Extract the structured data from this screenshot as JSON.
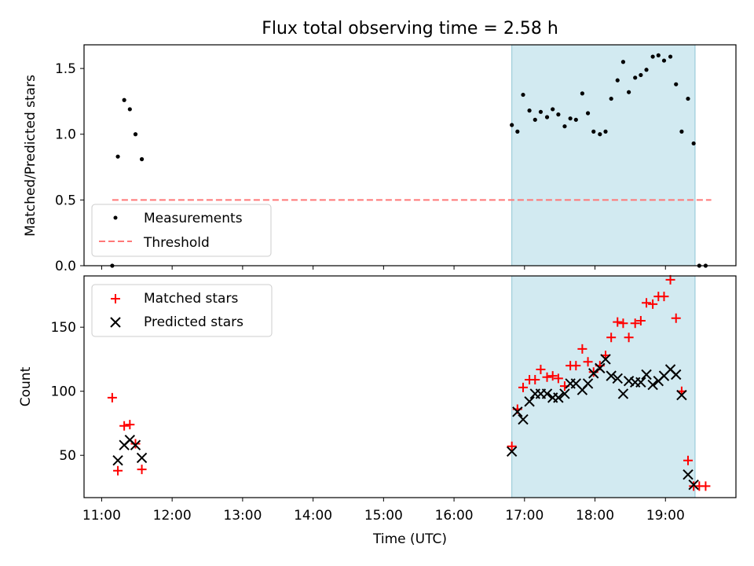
{
  "chart_data": [
    {
      "type": "scatter",
      "title": "Flux total observing time = 2.58 h",
      "xlabel": "",
      "ylabel": "Matched/Predicted stars",
      "xlim": [
        10.75,
        20.0
      ],
      "ylim": [
        0,
        1.68
      ],
      "yticks": [
        0.0,
        0.5,
        1.0,
        1.5
      ],
      "ytick_labels": [
        "0.0",
        "0.5",
        "1.0",
        "1.5"
      ],
      "shaded_span": [
        16.82,
        19.42
      ],
      "series": [
        {
          "name": "Measurements",
          "marker": "dot",
          "color": "#000000",
          "x": [
            11.15,
            11.23,
            11.32,
            11.4,
            11.48,
            11.57,
            16.82,
            16.9,
            16.98,
            17.07,
            17.15,
            17.23,
            17.32,
            17.4,
            17.48,
            17.57,
            17.65,
            17.73,
            17.82,
            17.9,
            17.98,
            18.07,
            18.15,
            18.23,
            18.32,
            18.4,
            18.48,
            18.57,
            18.65,
            18.73,
            18.82,
            18.9,
            18.98,
            19.07,
            19.15,
            19.23,
            19.32,
            19.4,
            19.48,
            19.57
          ],
          "y": [
            0.0,
            0.83,
            1.26,
            1.19,
            1.0,
            0.81,
            1.07,
            1.02,
            1.3,
            1.18,
            1.11,
            1.17,
            1.13,
            1.19,
            1.15,
            1.06,
            1.12,
            1.11,
            1.31,
            1.16,
            1.02,
            1.0,
            1.02,
            1.27,
            1.41,
            1.55,
            1.32,
            1.43,
            1.45,
            1.49,
            1.59,
            1.6,
            1.56,
            1.59,
            1.38,
            1.02,
            1.27,
            0.93,
            0.0,
            0.0
          ]
        },
        {
          "name": "Threshold",
          "marker": "dashed-line",
          "color": "#ff7777",
          "x": [
            11.15,
            19.65
          ],
          "y": [
            0.5,
            0.5
          ]
        }
      ],
      "legend": "lower-left"
    },
    {
      "type": "scatter",
      "title": "",
      "xlabel": "Time (UTC)",
      "ylabel": "Count",
      "xlim": [
        10.75,
        20.0
      ],
      "ylim": [
        17,
        190
      ],
      "yticks": [
        50,
        100,
        150
      ],
      "ytick_labels": [
        "50",
        "100",
        "150"
      ],
      "xticks": [
        11,
        12,
        13,
        14,
        15,
        16,
        17,
        18,
        19
      ],
      "xtick_labels": [
        "11:00",
        "12:00",
        "13:00",
        "14:00",
        "15:00",
        "16:00",
        "17:00",
        "18:00",
        "19:00"
      ],
      "shaded_span": [
        16.82,
        19.42
      ],
      "series": [
        {
          "name": "Matched stars",
          "marker": "plus",
          "color": "#ff0000",
          "x": [
            11.15,
            11.23,
            11.32,
            11.4,
            11.48,
            11.57,
            16.82,
            16.9,
            16.98,
            17.07,
            17.15,
            17.23,
            17.32,
            17.4,
            17.48,
            17.57,
            17.65,
            17.73,
            17.82,
            17.9,
            17.98,
            18.07,
            18.15,
            18.23,
            18.32,
            18.4,
            18.48,
            18.57,
            18.65,
            18.73,
            18.82,
            18.9,
            18.98,
            19.07,
            19.15,
            19.23,
            19.32,
            19.4,
            19.48,
            19.57
          ],
          "y": [
            95,
            38,
            73,
            74,
            59,
            39,
            57,
            86,
            103,
            109,
            109,
            117,
            111,
            112,
            110,
            104,
            120,
            120,
            133,
            123,
            115,
            120,
            128,
            142,
            154,
            153,
            142,
            153,
            155,
            169,
            168,
            174,
            174,
            187,
            157,
            100,
            46,
            26,
            26,
            26
          ]
        },
        {
          "name": "Predicted stars",
          "marker": "x",
          "color": "#000000",
          "x": [
            11.23,
            11.32,
            11.4,
            11.48,
            11.57,
            16.82,
            16.9,
            16.98,
            17.07,
            17.15,
            17.23,
            17.32,
            17.4,
            17.48,
            17.57,
            17.65,
            17.73,
            17.82,
            17.9,
            17.98,
            18.07,
            18.15,
            18.23,
            18.32,
            18.4,
            18.48,
            18.57,
            18.65,
            18.73,
            18.82,
            18.9,
            18.98,
            19.07,
            19.15,
            19.23,
            19.32,
            19.4
          ],
          "y": [
            46,
            58,
            62,
            58,
            48,
            53,
            84,
            78,
            92,
            98,
            98,
            98,
            95,
            95,
            98,
            106,
            106,
            101,
            106,
            114,
            118,
            125,
            112,
            110,
            98,
            108,
            107,
            107,
            113,
            105,
            108,
            112,
            117,
            113,
            97,
            35,
            27
          ]
        }
      ],
      "legend": "upper-left"
    }
  ]
}
